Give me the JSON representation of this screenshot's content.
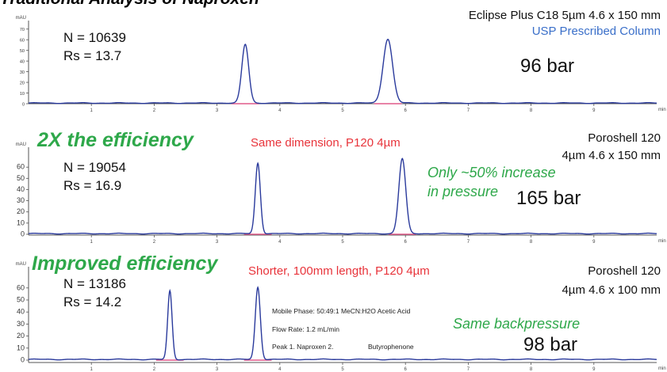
{
  "title": "Traditional Analysis of Naproxen",
  "colors": {
    "trace": "#2a3a9c",
    "baseline_marker": "#e05a8a",
    "green": "#2ea84a",
    "red": "#e8333a",
    "blue": "#3a6fc9"
  },
  "panels": [
    {
      "column_line1": "Eclipse Plus C18 5µm 4.6 x 150 mm",
      "column_line2": "USP Prescribed Column",
      "pressure": "96 bar",
      "n": "N = 10639",
      "rs": "Rs = 13.7"
    },
    {
      "heading": "2X the efficiency",
      "note": "Same dimension, P120 4µm",
      "column_line1": "Poroshell 120",
      "column_line2": "4µm 4.6 x 150 mm",
      "pressure_note_line1": "Only ~50% increase",
      "pressure_note_line2": "in pressure",
      "pressure": "165 bar",
      "n": "N = 19054",
      "rs": "Rs = 16.9"
    },
    {
      "heading": "Improved efficiency",
      "note": "Shorter, 100mm length, P120 4µm",
      "column_line1": "Poroshell 120",
      "column_line2": "4µm 4.6 x 100 mm",
      "pressure_note": "Same backpressure",
      "pressure": "98 bar",
      "n": "N = 13186",
      "rs": "Rs = 14.2",
      "mobile_phase": "Mobile Phase:  50:49:1 MeCN:H2O Acetic Acid",
      "flow_rate": "Flow Rate: 1.2 mL/min",
      "peaks": "Peak 1. Naproxen  2.",
      "peak2": "Butyrophenone"
    }
  ],
  "chart_data": [
    {
      "type": "line",
      "ylabel": "mAU",
      "xlabel": "min",
      "xlim": [
        0,
        10
      ],
      "ylim": [
        0,
        75
      ],
      "y_ticks": [
        "70",
        "60",
        "50",
        "40",
        "30",
        "20",
        "10",
        "0"
      ],
      "x_ticks": [
        "1",
        "2",
        "3",
        "4",
        "5",
        "6",
        "7",
        "8",
        "9"
      ],
      "peaks": [
        {
          "rt": 3.45,
          "height": 55,
          "width": 0.055
        },
        {
          "rt": 5.72,
          "height": 60,
          "width": 0.075
        }
      ]
    },
    {
      "type": "line",
      "ylabel": "mAU",
      "xlabel": "min",
      "xlim": [
        0,
        10
      ],
      "ylim": [
        0,
        75
      ],
      "y_ticks": [
        "60",
        "50",
        "40",
        "30",
        "20",
        "10",
        "0"
      ],
      "x_ticks": [
        "1",
        "2",
        "3",
        "4",
        "5",
        "6",
        "7",
        "8",
        "9"
      ],
      "peaks": [
        {
          "rt": 3.65,
          "height": 63,
          "width": 0.04
        },
        {
          "rt": 5.95,
          "height": 67,
          "width": 0.055
        }
      ]
    },
    {
      "type": "line",
      "ylabel": "mAU",
      "xlabel": "min",
      "xlim": [
        0,
        10
      ],
      "ylim": [
        0,
        75
      ],
      "y_ticks": [
        "60",
        "50",
        "40",
        "30",
        "20",
        "10",
        "0"
      ],
      "x_ticks": [
        "1",
        "2",
        "3",
        "4",
        "5",
        "6",
        "7",
        "8",
        "9"
      ],
      "peaks": [
        {
          "rt": 2.25,
          "height": 57,
          "width": 0.035
        },
        {
          "rt": 3.65,
          "height": 60,
          "width": 0.04
        }
      ]
    }
  ]
}
